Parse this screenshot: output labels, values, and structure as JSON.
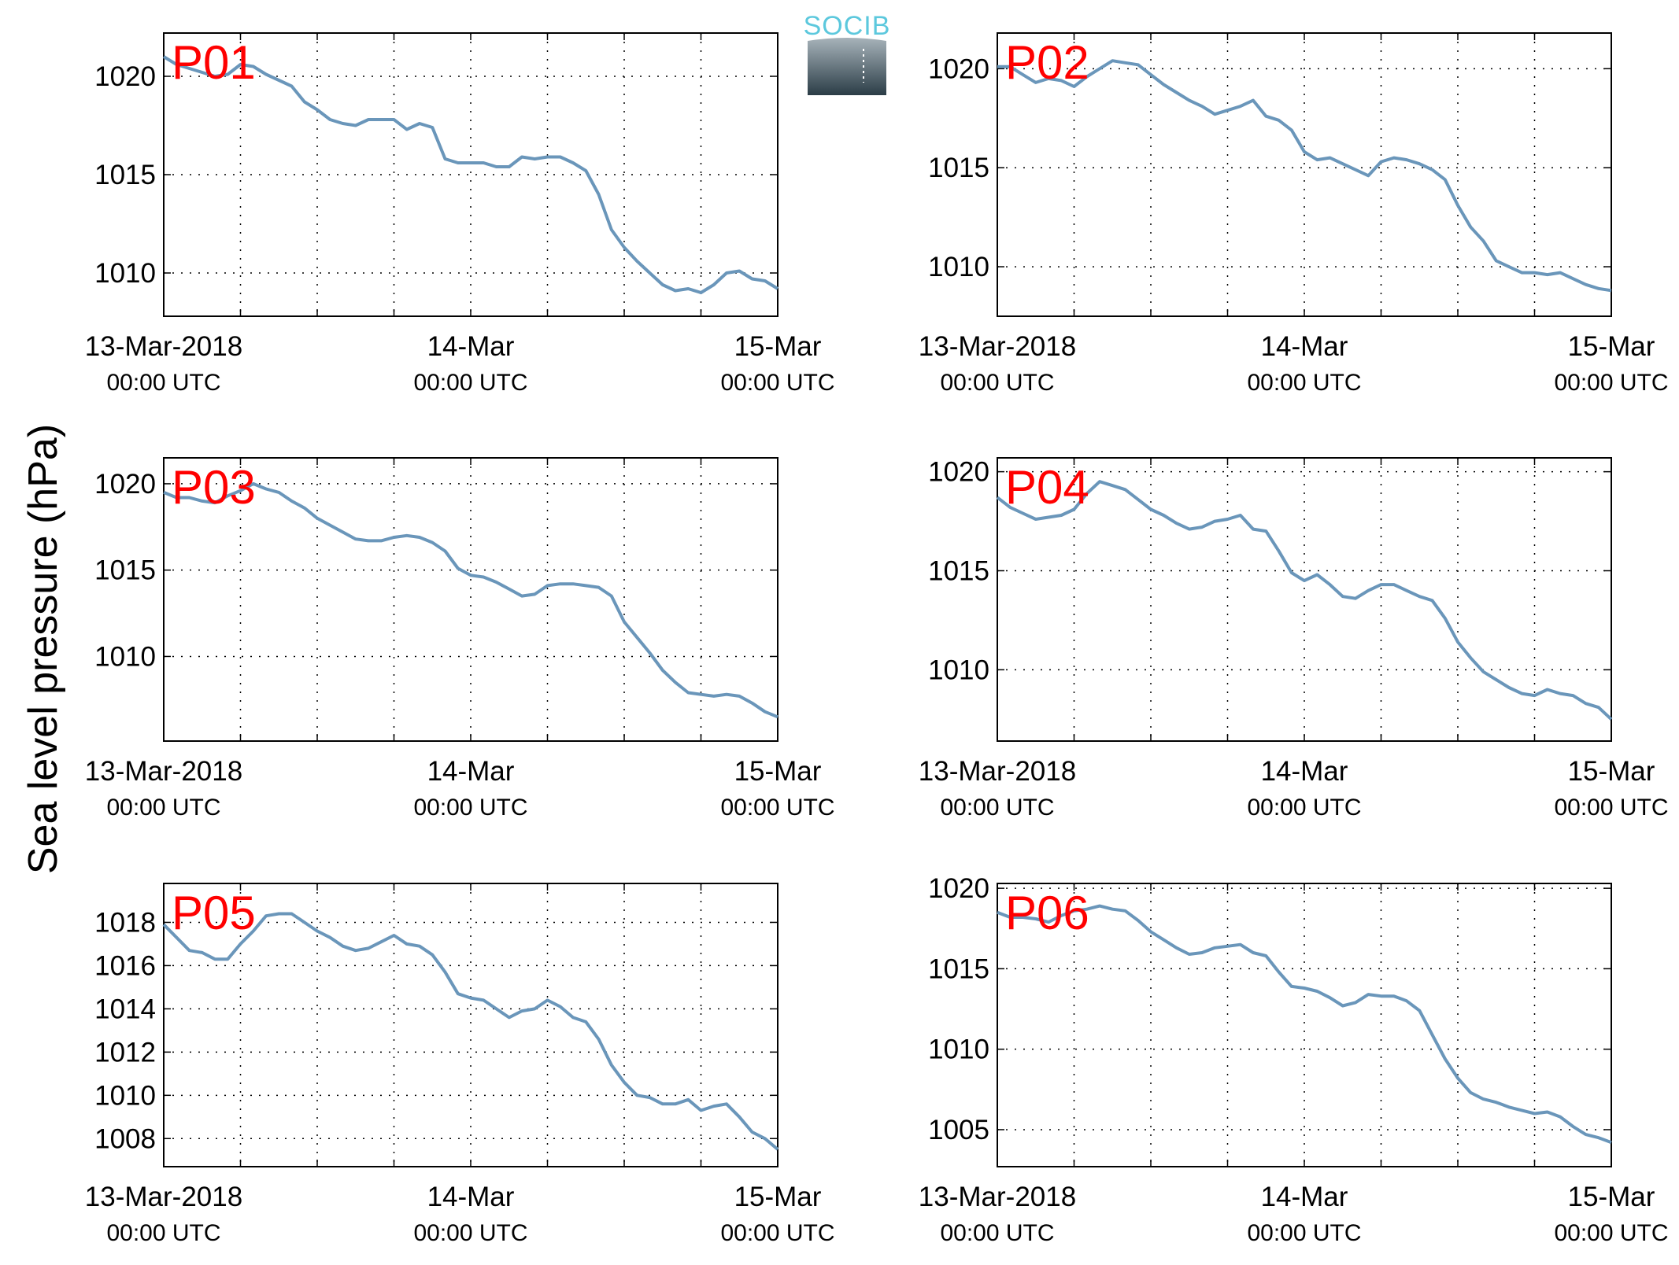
{
  "figure": {
    "ylabel": "Sea level pressure (hPa)",
    "logo_text": "SOCIB",
    "colors": {
      "line": "#6a96ba",
      "panel_label": "#ff0000",
      "grid": "#000000"
    }
  },
  "chart_data": [
    {
      "type": "line",
      "title": "P01",
      "x_ticks": [
        {
          "main": "13-Mar-2018",
          "sub": "00:00 UTC"
        },
        {
          "main": "14-Mar",
          "sub": "00:00 UTC"
        },
        {
          "main": "15-Mar",
          "sub": "00:00 UTC"
        }
      ],
      "y_ticks": [
        1010,
        1015,
        1020
      ],
      "ylim": [
        1007.8,
        1022.2
      ],
      "xlim_hours": [
        0,
        48
      ],
      "series": [
        {
          "x": [
            0,
            1,
            2,
            3,
            4,
            5,
            6,
            7,
            8,
            9,
            10,
            11,
            12,
            13,
            14,
            15,
            16,
            17,
            18,
            19,
            20,
            21,
            22,
            23,
            24,
            25,
            26,
            27,
            28,
            29,
            30,
            31,
            32,
            33,
            34,
            35,
            36,
            37,
            38,
            39,
            40,
            41,
            42,
            43,
            44,
            45,
            46,
            47,
            48
          ],
          "values": [
            1021.0,
            1020.6,
            1020.4,
            1020.2,
            1020.0,
            1020.1,
            1020.6,
            1020.5,
            1020.1,
            1019.8,
            1019.5,
            1018.7,
            1018.3,
            1017.8,
            1017.6,
            1017.5,
            1017.8,
            1017.8,
            1017.8,
            1017.3,
            1017.6,
            1017.4,
            1015.8,
            1015.6,
            1015.6,
            1015.6,
            1015.4,
            1015.4,
            1015.9,
            1015.8,
            1015.9,
            1015.9,
            1015.6,
            1015.2,
            1014.0,
            1012.2,
            1011.3,
            1010.6,
            1010.0,
            1009.4,
            1009.1,
            1009.2,
            1009.0,
            1009.4,
            1010.0,
            1010.1,
            1009.7,
            1009.6,
            1009.2
          ]
        }
      ]
    },
    {
      "type": "line",
      "title": "P02",
      "x_ticks": [
        {
          "main": "13-Mar-2018",
          "sub": "00:00 UTC"
        },
        {
          "main": "14-Mar",
          "sub": "00:00 UTC"
        },
        {
          "main": "15-Mar",
          "sub": "00:00 UTC"
        }
      ],
      "y_ticks": [
        1010,
        1015,
        1020
      ],
      "ylim": [
        1007.5,
        1021.8
      ],
      "xlim_hours": [
        0,
        48
      ],
      "series": [
        {
          "x": [
            0,
            1,
            2,
            3,
            4,
            5,
            6,
            7,
            8,
            9,
            10,
            11,
            12,
            13,
            14,
            15,
            16,
            17,
            18,
            19,
            20,
            21,
            22,
            23,
            24,
            25,
            26,
            27,
            28,
            29,
            30,
            31,
            32,
            33,
            34,
            35,
            36,
            37,
            38,
            39,
            40,
            41,
            42,
            43,
            44,
            45,
            46,
            47,
            48
          ],
          "values": [
            1020.1,
            1020.1,
            1019.7,
            1019.3,
            1019.5,
            1019.4,
            1019.1,
            1019.6,
            1020.0,
            1020.4,
            1020.3,
            1020.2,
            1019.7,
            1019.2,
            1018.8,
            1018.4,
            1018.1,
            1017.7,
            1017.9,
            1018.1,
            1018.4,
            1017.6,
            1017.4,
            1016.9,
            1015.8,
            1015.4,
            1015.5,
            1015.2,
            1014.9,
            1014.6,
            1015.3,
            1015.5,
            1015.4,
            1015.2,
            1014.9,
            1014.4,
            1013.1,
            1012.0,
            1011.3,
            1010.3,
            1010.0,
            1009.7,
            1009.7,
            1009.6,
            1009.7,
            1009.4,
            1009.1,
            1008.9,
            1008.8
          ]
        }
      ]
    },
    {
      "type": "line",
      "title": "P03",
      "x_ticks": [
        {
          "main": "13-Mar-2018",
          "sub": "00:00 UTC"
        },
        {
          "main": "14-Mar",
          "sub": "00:00 UTC"
        },
        {
          "main": "15-Mar",
          "sub": "00:00 UTC"
        }
      ],
      "y_ticks": [
        1010,
        1015,
        1020
      ],
      "ylim": [
        1005.1,
        1021.5
      ],
      "xlim_hours": [
        0,
        48
      ],
      "series": [
        {
          "x": [
            0,
            1,
            2,
            3,
            4,
            5,
            6,
            7,
            8,
            9,
            10,
            11,
            12,
            13,
            14,
            15,
            16,
            17,
            18,
            19,
            20,
            21,
            22,
            23,
            24,
            25,
            26,
            27,
            28,
            29,
            30,
            31,
            32,
            33,
            34,
            35,
            36,
            37,
            38,
            39,
            40,
            41,
            42,
            43,
            44,
            45,
            46,
            47,
            48
          ],
          "values": [
            1019.5,
            1019.2,
            1019.2,
            1019.0,
            1018.9,
            1019.3,
            1019.6,
            1020.0,
            1019.7,
            1019.5,
            1019.0,
            1018.6,
            1018.0,
            1017.6,
            1017.2,
            1016.8,
            1016.7,
            1016.7,
            1016.9,
            1017.0,
            1016.9,
            1016.6,
            1016.1,
            1015.1,
            1014.7,
            1014.6,
            1014.3,
            1013.9,
            1013.5,
            1013.6,
            1014.1,
            1014.2,
            1014.2,
            1014.1,
            1014.0,
            1013.5,
            1012.0,
            1011.1,
            1010.2,
            1009.2,
            1008.5,
            1007.9,
            1007.8,
            1007.7,
            1007.8,
            1007.7,
            1007.3,
            1006.8,
            1006.5
          ]
        }
      ]
    },
    {
      "type": "line",
      "title": "P04",
      "x_ticks": [
        {
          "main": "13-Mar-2018",
          "sub": "00:00 UTC"
        },
        {
          "main": "14-Mar",
          "sub": "00:00 UTC"
        },
        {
          "main": "15-Mar",
          "sub": "00:00 UTC"
        }
      ],
      "y_ticks": [
        1010,
        1015,
        1020
      ],
      "ylim": [
        1006.4,
        1020.7
      ],
      "xlim_hours": [
        0,
        48
      ],
      "series": [
        {
          "x": [
            0,
            1,
            2,
            3,
            4,
            5,
            6,
            7,
            8,
            9,
            10,
            11,
            12,
            13,
            14,
            15,
            16,
            17,
            18,
            19,
            20,
            21,
            22,
            23,
            24,
            25,
            26,
            27,
            28,
            29,
            30,
            31,
            32,
            33,
            34,
            35,
            36,
            37,
            38,
            39,
            40,
            41,
            42,
            43,
            44,
            45,
            46,
            47,
            48
          ],
          "values": [
            1018.7,
            1018.2,
            1017.9,
            1017.6,
            1017.7,
            1017.8,
            1018.1,
            1018.9,
            1019.5,
            1019.3,
            1019.1,
            1018.6,
            1018.1,
            1017.8,
            1017.4,
            1017.1,
            1017.2,
            1017.5,
            1017.6,
            1017.8,
            1017.1,
            1017.0,
            1016.0,
            1014.9,
            1014.5,
            1014.8,
            1014.3,
            1013.7,
            1013.6,
            1014.0,
            1014.3,
            1014.3,
            1014.0,
            1013.7,
            1013.5,
            1012.6,
            1011.4,
            1010.6,
            1009.9,
            1009.5,
            1009.1,
            1008.8,
            1008.7,
            1009.0,
            1008.8,
            1008.7,
            1008.3,
            1008.1,
            1007.5
          ]
        }
      ]
    },
    {
      "type": "line",
      "title": "P05",
      "x_ticks": [
        {
          "main": "13-Mar-2018",
          "sub": "00:00 UTC"
        },
        {
          "main": "14-Mar",
          "sub": "00:00 UTC"
        },
        {
          "main": "15-Mar",
          "sub": "00:00 UTC"
        }
      ],
      "y_ticks": [
        1008,
        1010,
        1012,
        1014,
        1016,
        1018
      ],
      "ylim": [
        1006.7,
        1019.8
      ],
      "xlim_hours": [
        0,
        48
      ],
      "series": [
        {
          "x": [
            0,
            1,
            2,
            3,
            4,
            5,
            6,
            7,
            8,
            9,
            10,
            11,
            12,
            13,
            14,
            15,
            16,
            17,
            18,
            19,
            20,
            21,
            22,
            23,
            24,
            25,
            26,
            27,
            28,
            29,
            30,
            31,
            32,
            33,
            34,
            35,
            36,
            37,
            38,
            39,
            40,
            41,
            42,
            43,
            44,
            45,
            46,
            47,
            48
          ],
          "values": [
            1017.9,
            1017.3,
            1016.7,
            1016.6,
            1016.3,
            1016.3,
            1017.0,
            1017.6,
            1018.3,
            1018.4,
            1018.4,
            1018.0,
            1017.6,
            1017.3,
            1016.9,
            1016.7,
            1016.8,
            1017.1,
            1017.4,
            1017.0,
            1016.9,
            1016.5,
            1015.7,
            1014.7,
            1014.5,
            1014.4,
            1014.0,
            1013.6,
            1013.9,
            1014.0,
            1014.4,
            1014.1,
            1013.6,
            1013.4,
            1012.6,
            1011.4,
            1010.6,
            1010.0,
            1009.9,
            1009.6,
            1009.6,
            1009.8,
            1009.3,
            1009.5,
            1009.6,
            1009.0,
            1008.3,
            1008.0,
            1007.5
          ]
        }
      ]
    },
    {
      "type": "line",
      "title": "P06",
      "x_ticks": [
        {
          "main": "13-Mar-2018",
          "sub": "00:00 UTC"
        },
        {
          "main": "14-Mar",
          "sub": "00:00 UTC"
        },
        {
          "main": "15-Mar",
          "sub": "00:00 UTC"
        }
      ],
      "y_ticks": [
        1005,
        1010,
        1015,
        1020
      ],
      "ylim": [
        1002.7,
        1020.3
      ],
      "xlim_hours": [
        0,
        48
      ],
      "series": [
        {
          "x": [
            0,
            1,
            2,
            3,
            4,
            5,
            6,
            7,
            8,
            9,
            10,
            11,
            12,
            13,
            14,
            15,
            16,
            17,
            18,
            19,
            20,
            21,
            22,
            23,
            24,
            25,
            26,
            27,
            28,
            29,
            30,
            31,
            32,
            33,
            34,
            35,
            36,
            37,
            38,
            39,
            40,
            41,
            42,
            43,
            44,
            45,
            46,
            47,
            48
          ],
          "values": [
            1018.5,
            1018.2,
            1018.2,
            1018.1,
            1017.9,
            1018.3,
            1018.6,
            1018.7,
            1018.9,
            1018.7,
            1018.6,
            1018.0,
            1017.3,
            1016.8,
            1016.3,
            1015.9,
            1016.0,
            1016.3,
            1016.4,
            1016.5,
            1016.0,
            1015.8,
            1014.8,
            1013.9,
            1013.8,
            1013.6,
            1013.2,
            1012.7,
            1012.9,
            1013.4,
            1013.3,
            1013.3,
            1013.0,
            1012.4,
            1010.9,
            1009.4,
            1008.2,
            1007.3,
            1006.9,
            1006.7,
            1006.4,
            1006.2,
            1006.0,
            1006.1,
            1005.8,
            1005.2,
            1004.7,
            1004.5,
            1004.2
          ]
        }
      ]
    }
  ]
}
